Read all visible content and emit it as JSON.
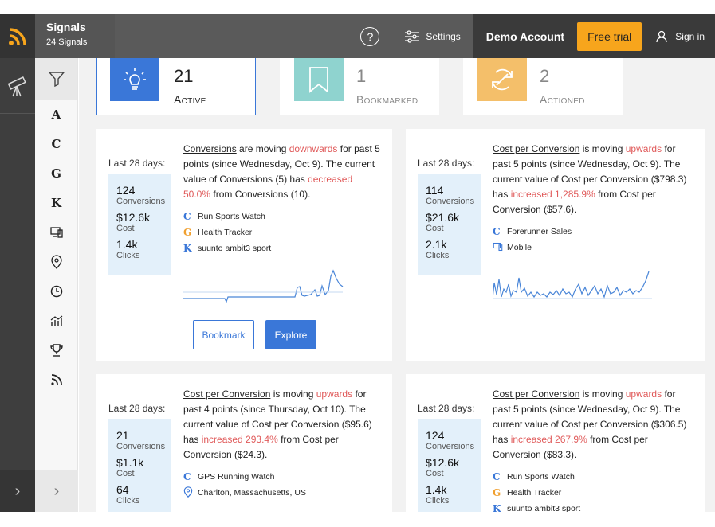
{
  "app": {
    "title": "Signals",
    "subtitle": "24 Signals"
  },
  "header": {
    "help_symbol": "?",
    "settings_label": "Settings",
    "account_label": "Demo Account",
    "trial_label": "Free trial",
    "signin_label": "Sign in"
  },
  "filters": {
    "items": [
      {
        "glyph": "A"
      },
      {
        "glyph": "C"
      },
      {
        "glyph": "G"
      },
      {
        "glyph": "K"
      }
    ]
  },
  "tabs": [
    {
      "count": "21",
      "label": "Active"
    },
    {
      "count": "1",
      "label": "Bookmarked"
    },
    {
      "count": "2",
      "label": "Actioned"
    }
  ],
  "cards": [
    {
      "period": "Last 28 days:",
      "stats": [
        {
          "value": "124",
          "key": "Conversions"
        },
        {
          "value": "$12.6k",
          "key": "Cost"
        },
        {
          "value": "1.4k",
          "key": "Clicks"
        }
      ],
      "metric": "Conversions",
      "s1": " are moving ",
      "direction": "downwards",
      "s2": " for past 5 points (since Wednesday, Oct 9). The current value of Conversions (5) has ",
      "change": "decreased 50.0%",
      "s3": " from Conversions (10).",
      "tags": [
        {
          "glyph": "C",
          "text": "Run Sports Watch"
        },
        {
          "glyph": "G",
          "text": "Health Tracker"
        },
        {
          "glyph": "K",
          "text": "suunto ambit3 sport"
        }
      ],
      "bookmark_label": "Bookmark",
      "explore_label": "Explore"
    },
    {
      "period": "Last 28 days:",
      "stats": [
        {
          "value": "114",
          "key": "Conversions"
        },
        {
          "value": "$21.6k",
          "key": "Cost"
        },
        {
          "value": "2.1k",
          "key": "Clicks"
        }
      ],
      "metric": "Cost per Conversion",
      "s1": " is moving ",
      "direction": "upwards",
      "s2": " for past 5 points (since Wednesday, Oct 9). The current value of Cost per Conversion ($798.3) has ",
      "change": "increased 1,285.9%",
      "s3": " from Cost per Conversion ($57.6).",
      "tags": [
        {
          "glyph": "C",
          "text": "Forerunner Sales"
        },
        {
          "glyph": "device-icon",
          "text": "Mobile"
        }
      ]
    },
    {
      "period": "Last 28 days:",
      "stats": [
        {
          "value": "21",
          "key": "Conversions"
        },
        {
          "value": "$1.1k",
          "key": "Cost"
        },
        {
          "value": "64",
          "key": "Clicks"
        }
      ],
      "metric": "Cost per Conversion",
      "s1": " is moving ",
      "direction": "upwards",
      "s2": " for past 4 points (since Thursday, Oct 10). The current value of Cost per Conversion ($95.6) has ",
      "change": "increased 293.4%",
      "s3": " from Cost per Conversion ($24.3).",
      "tags": [
        {
          "glyph": "C",
          "text": "GPS Running Watch"
        },
        {
          "glyph": "location-icon",
          "text": "Charlton, Massachusetts, US"
        }
      ]
    },
    {
      "period": "Last 28 days:",
      "stats": [
        {
          "value": "124",
          "key": "Conversions"
        },
        {
          "value": "$12.6k",
          "key": "Cost"
        },
        {
          "value": "1.4k",
          "key": "Clicks"
        }
      ],
      "metric": "Cost per Conversion",
      "s1": " is moving ",
      "direction": "upwards",
      "s2": " for past 5 points (since Wednesday, Oct 9). The current value of Cost per Conversion ($306.5) has ",
      "change": "increased 267.9%",
      "s3": " from Cost per Conversion ($83.3).",
      "tags": [
        {
          "glyph": "C",
          "text": "Run Sports Watch"
        },
        {
          "glyph": "G",
          "text": "Health Tracker"
        },
        {
          "glyph": "K",
          "text": "suunto ambit3 sport"
        }
      ]
    }
  ],
  "colors": {
    "accent": "#3a77d8",
    "trial": "#f7a51c",
    "negative": "#e05a5a",
    "bookmark": "#8fd3cf",
    "actioned": "#f4bf6a"
  }
}
